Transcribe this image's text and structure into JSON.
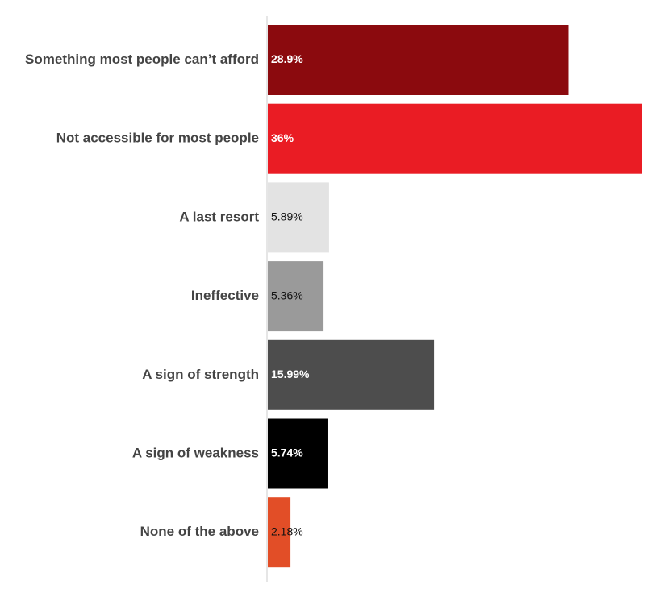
{
  "chart_data": {
    "type": "bar",
    "orientation": "horizontal",
    "title": "",
    "xlabel": "",
    "ylabel": "",
    "grid": false,
    "legend": "none",
    "xlim": [
      0,
      36
    ],
    "categories": [
      "Something most people can’t afford",
      "Not accessible for most people",
      "A last resort",
      "Ineffective",
      "A sign of strength",
      "A sign of weakness",
      "None of the above"
    ],
    "values": [
      28.9,
      36,
      5.89,
      5.36,
      15.99,
      5.74,
      2.18
    ],
    "value_labels": [
      "28.9%",
      "36%",
      "5.89%",
      "5.36%",
      "15.99%",
      "5.74%",
      "2.18%"
    ],
    "colors": [
      "#8b0a0e",
      "#ea1c24",
      "#e3e3e3",
      "#9a9a9a",
      "#4d4d4d",
      "#000000",
      "#e24e27"
    ],
    "label_inside": [
      true,
      true,
      false,
      false,
      true,
      true,
      false
    ]
  }
}
